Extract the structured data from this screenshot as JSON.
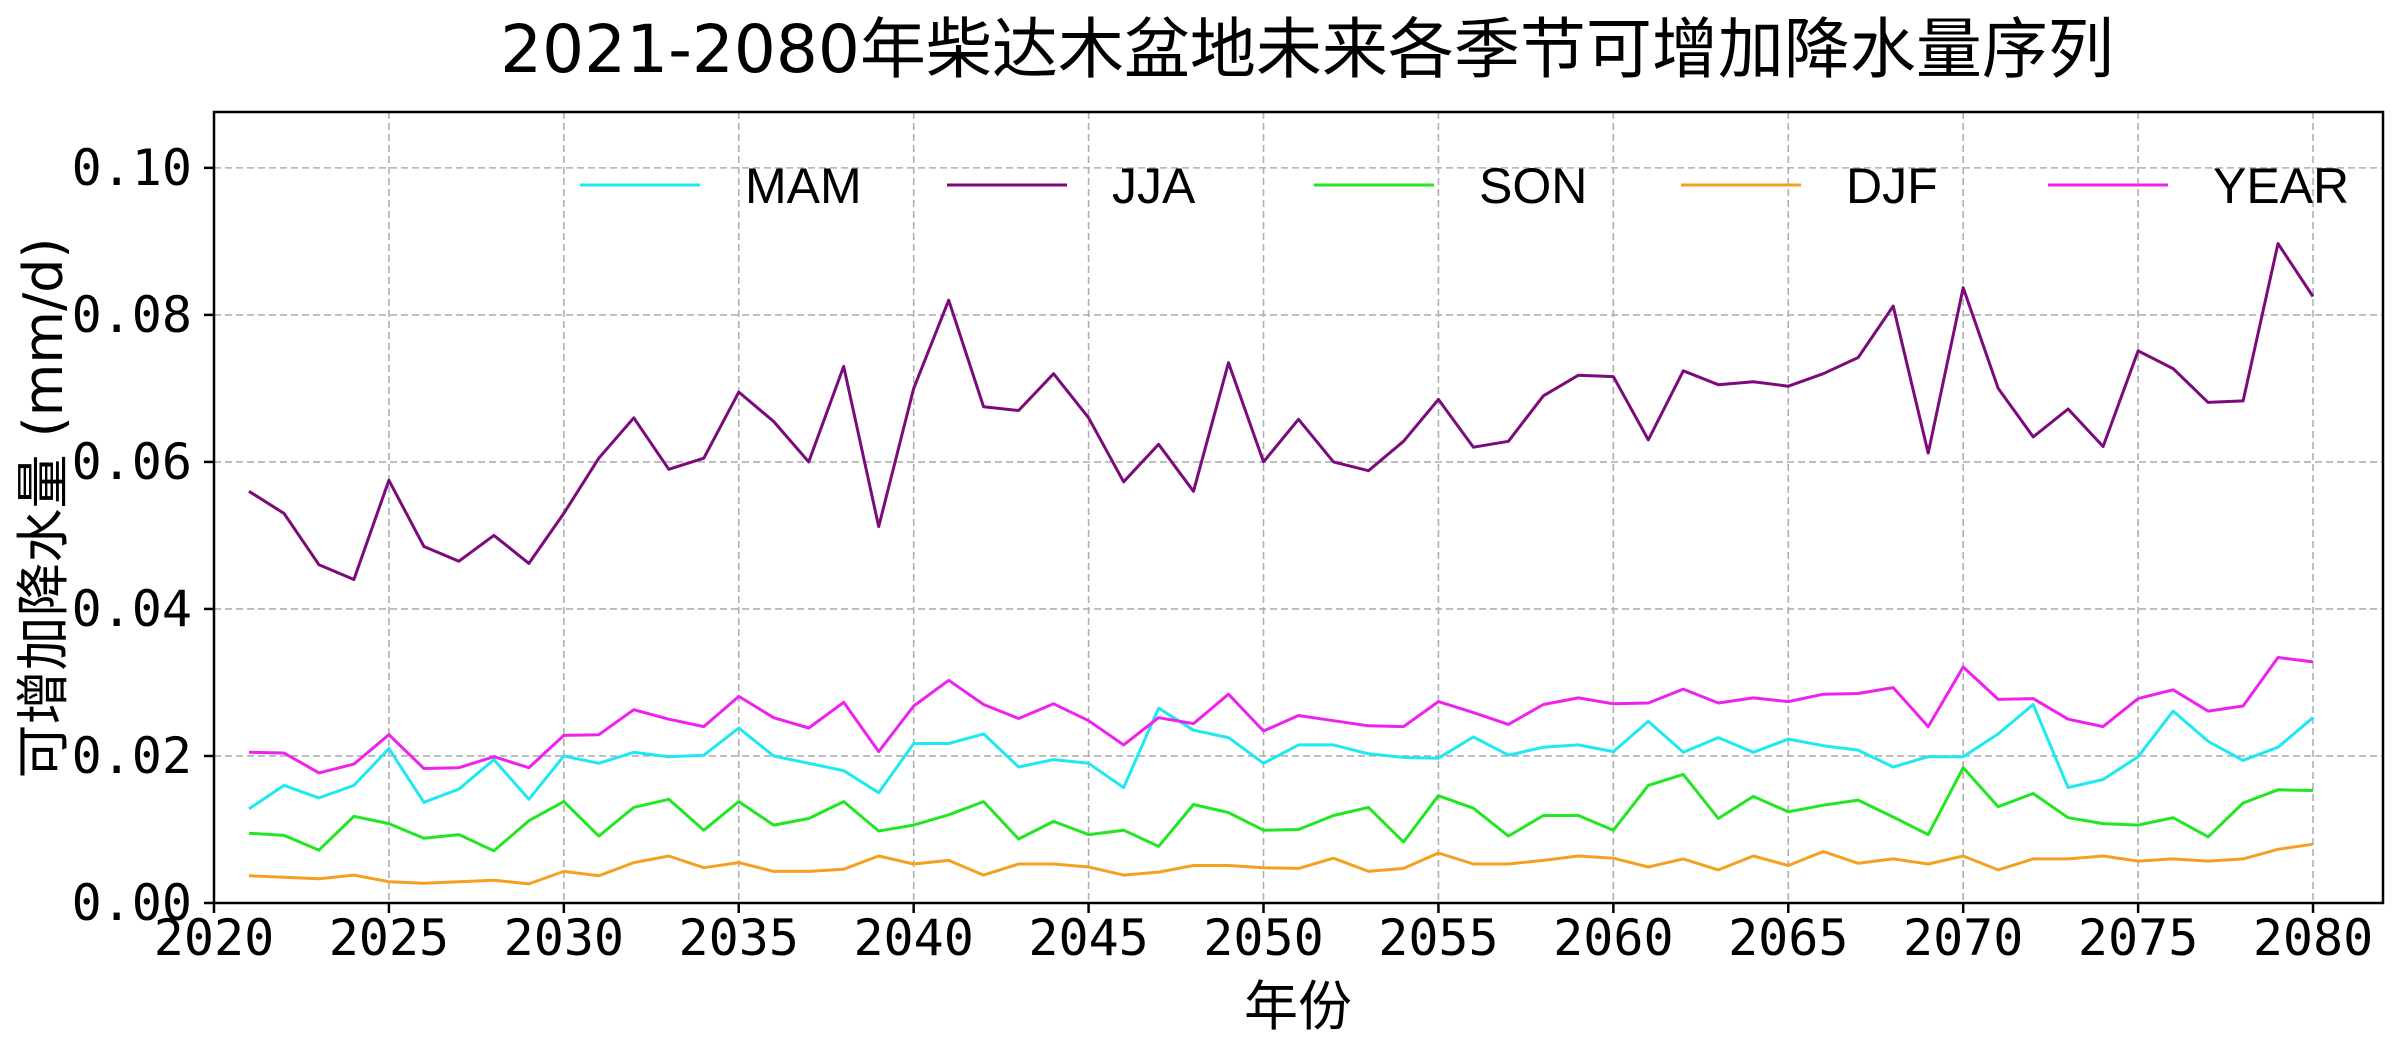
{
  "chart_data": {
    "type": "line",
    "title": "2021-2080年柴达木盆地未来各季节可增加降水量序列",
    "xlabel": "年份",
    "ylabel": "可增加降水量 (mm/d)",
    "xlim": [
      2020,
      2082
    ],
    "ylim": [
      0,
      0.1076
    ],
    "xticks": [
      2020,
      2025,
      2030,
      2035,
      2040,
      2045,
      2050,
      2055,
      2060,
      2065,
      2070,
      2075,
      2080
    ],
    "yticks": [
      0.0,
      0.02,
      0.04,
      0.06,
      0.08,
      0.1
    ],
    "ytick_labels": [
      "0.00",
      "0.02",
      "0.04",
      "0.06",
      "0.08",
      "0.10"
    ],
    "grid": true,
    "legend_position": "top-right",
    "x_start": 2021,
    "series": [
      {
        "name": "MAM",
        "color": "#1ee8f0",
        "values": [
          0.0128,
          0.016,
          0.0143,
          0.016,
          0.021,
          0.0137,
          0.0155,
          0.0195,
          0.0141,
          0.02,
          0.019,
          0.0205,
          0.0199,
          0.0201,
          0.0238,
          0.02,
          0.019,
          0.018,
          0.015,
          0.0217,
          0.0217,
          0.023,
          0.0185,
          0.0195,
          0.019,
          0.0157,
          0.0265,
          0.0235,
          0.0225,
          0.019,
          0.0215,
          0.0215,
          0.0203,
          0.0198,
          0.0197,
          0.0226,
          0.0201,
          0.0212,
          0.0215,
          0.0206,
          0.0247,
          0.0205,
          0.0225,
          0.0205,
          0.0223,
          0.0214,
          0.0208,
          0.0185,
          0.0199,
          0.0199,
          0.023,
          0.027,
          0.0157,
          0.0168,
          0.0199,
          0.0261,
          0.022,
          0.0194,
          0.0212,
          0.0252
        ]
      },
      {
        "name": "JJA",
        "color": "#7b0a7b",
        "values": [
          0.056,
          0.053,
          0.046,
          0.044,
          0.0575,
          0.0485,
          0.0465,
          0.05,
          0.0462,
          0.053,
          0.0605,
          0.066,
          0.059,
          0.0605,
          0.0695,
          0.0655,
          0.06,
          0.073,
          0.0512,
          0.07,
          0.082,
          0.0675,
          0.067,
          0.072,
          0.066,
          0.0573,
          0.0624,
          0.056,
          0.0735,
          0.06,
          0.0658,
          0.06,
          0.0588,
          0.0628,
          0.0685,
          0.062,
          0.0628,
          0.069,
          0.0718,
          0.0716,
          0.063,
          0.0724,
          0.0705,
          0.0709,
          0.0703,
          0.072,
          0.0742,
          0.0812,
          0.0612,
          0.0837,
          0.07,
          0.0634,
          0.0672,
          0.0621,
          0.0751,
          0.0727,
          0.0681,
          0.0683,
          0.0897,
          0.0825
        ]
      },
      {
        "name": "SON",
        "color": "#22e622",
        "values": [
          0.0095,
          0.0092,
          0.0072,
          0.0118,
          0.0108,
          0.0088,
          0.0093,
          0.0071,
          0.0112,
          0.0138,
          0.0091,
          0.013,
          0.0141,
          0.0099,
          0.0138,
          0.0106,
          0.0115,
          0.0138,
          0.0098,
          0.0106,
          0.012,
          0.0138,
          0.0087,
          0.0111,
          0.0093,
          0.0099,
          0.0077,
          0.0134,
          0.0123,
          0.0099,
          0.01,
          0.0119,
          0.013,
          0.0083,
          0.0146,
          0.0129,
          0.0091,
          0.0119,
          0.0119,
          0.0099,
          0.016,
          0.0175,
          0.0115,
          0.0145,
          0.0124,
          0.0133,
          0.014,
          0.0117,
          0.0093,
          0.0184,
          0.0131,
          0.0149,
          0.0116,
          0.0108,
          0.0106,
          0.0116,
          0.009,
          0.0136,
          0.0154,
          0.0153
        ]
      },
      {
        "name": "DJF",
        "color": "#f5a020",
        "values": [
          0.0037,
          0.0035,
          0.0033,
          0.0038,
          0.0029,
          0.0027,
          0.0029,
          0.0031,
          0.0026,
          0.0043,
          0.0037,
          0.0055,
          0.0064,
          0.0048,
          0.0055,
          0.0043,
          0.0043,
          0.0046,
          0.0064,
          0.0053,
          0.0058,
          0.0038,
          0.0053,
          0.0053,
          0.0049,
          0.0038,
          0.0042,
          0.0051,
          0.0051,
          0.0048,
          0.0047,
          0.0061,
          0.0043,
          0.0047,
          0.0068,
          0.0053,
          0.0053,
          0.0058,
          0.0064,
          0.0061,
          0.0049,
          0.006,
          0.0045,
          0.0064,
          0.0051,
          0.007,
          0.0054,
          0.006,
          0.0053,
          0.0064,
          0.0045,
          0.006,
          0.006,
          0.0064,
          0.0057,
          0.006,
          0.0057,
          0.006,
          0.0073,
          0.008
        ]
      },
      {
        "name": "YEAR",
        "color": "#ee22ee",
        "values": [
          0.0205,
          0.0204,
          0.0177,
          0.0189,
          0.0229,
          0.0183,
          0.0184,
          0.0199,
          0.0184,
          0.0228,
          0.0229,
          0.0263,
          0.025,
          0.024,
          0.0281,
          0.0252,
          0.0238,
          0.0273,
          0.0206,
          0.0268,
          0.0303,
          0.027,
          0.0251,
          0.0271,
          0.0248,
          0.0215,
          0.0252,
          0.0244,
          0.0284,
          0.0234,
          0.0255,
          0.0248,
          0.0241,
          0.024,
          0.0274,
          0.0259,
          0.0243,
          0.027,
          0.0279,
          0.0271,
          0.0272,
          0.0291,
          0.0272,
          0.0279,
          0.0274,
          0.0284,
          0.0285,
          0.0293,
          0.024,
          0.0321,
          0.0277,
          0.0278,
          0.025,
          0.024,
          0.0278,
          0.029,
          0.0261,
          0.0268,
          0.0334,
          0.0328
        ]
      }
    ]
  }
}
